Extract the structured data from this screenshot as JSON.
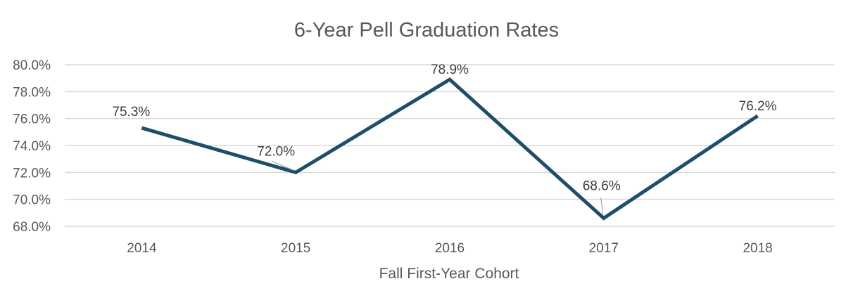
{
  "chart_data": {
    "type": "line",
    "title": "6-Year Pell Graduation Rates",
    "xlabel": "Fall First-Year Cohort",
    "ylabel": "",
    "categories": [
      "2014",
      "2015",
      "2016",
      "2017",
      "2018"
    ],
    "series": [
      {
        "values": [
          75.3,
          72.0,
          78.9,
          68.6,
          76.2
        ],
        "labels": [
          "75.3%",
          "72.0%",
          "78.9%",
          "68.6%",
          "76.2%"
        ],
        "color": "#1f4e6b"
      }
    ],
    "ylim": [
      68.0,
      80.0
    ],
    "yticks": [
      80.0,
      78.0,
      76.0,
      74.0,
      72.0,
      70.0,
      68.0
    ],
    "ytick_labels": [
      "80.0%",
      "78.0%",
      "76.0%",
      "74.0%",
      "72.0%",
      "70.0%",
      "68.0%"
    ],
    "grid": true,
    "legend": "none"
  }
}
